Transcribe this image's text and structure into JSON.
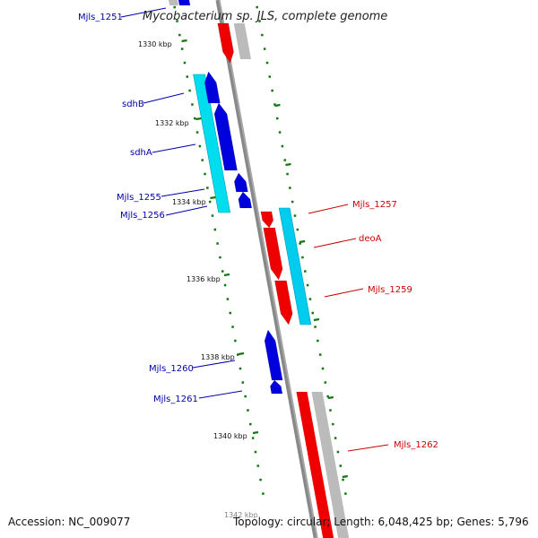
{
  "title": "Mycobacterium sp. JLS, complete genome",
  "footer": {
    "accession": "Accession: NC_009077",
    "summary": "Topology: circular; Length: 6,048,425 bp; Genes: 5,796"
  },
  "tick_labels": [
    "1330 kbp",
    "1332 kbp",
    "1334 kbp",
    "1336 kbp",
    "1338 kbp",
    "1340 kbp",
    "1342 kbp"
  ],
  "colors": {
    "reverse_gene": "#0000dd",
    "reverse_cds": "#00ddee",
    "forward_gene": "#ee0000",
    "forward_cds": "#00ccee",
    "gray_track": "#bbbbbb",
    "backbone": "#888888",
    "ticks": "#117711"
  },
  "left_labels": [
    "Mjls_1251",
    "sdhB",
    "sdhA",
    "Mjls_1255",
    "Mjls_1256",
    "Mjls_1260",
    "Mjls_1261"
  ],
  "right_labels": [
    "Mjls_1257",
    "deoA",
    "Mjls_1259",
    "Mjls_1262"
  ]
}
